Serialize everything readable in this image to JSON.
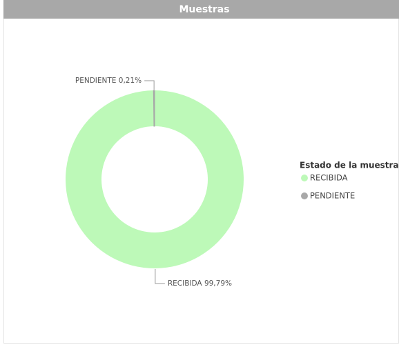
{
  "chart_data": {
    "type": "donut",
    "title": "Muestras",
    "categories": [
      "RECIBIDA",
      "PENDIENTE"
    ],
    "values": [
      99.79,
      0.21
    ],
    "value_labels": [
      "99,79%",
      "0,21%"
    ],
    "colors": [
      "#bdf9b8",
      "#a8a8a8"
    ],
    "legend_title": "Estado de la muestra",
    "legend": "right"
  }
}
